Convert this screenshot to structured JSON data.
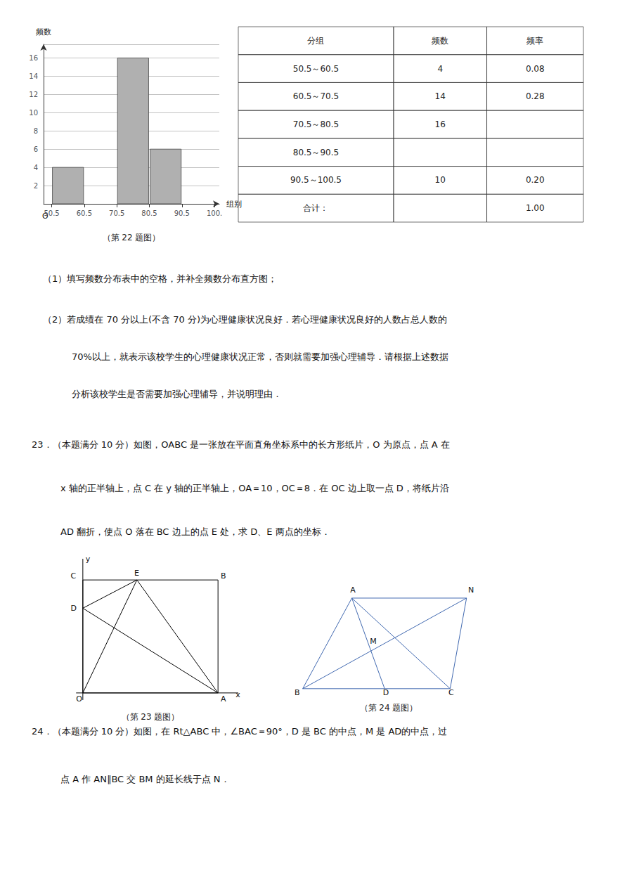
{
  "chart_data": [
    {
      "type": "histogram",
      "title": "（第 22 题图）",
      "bins": [
        50.5,
        60.5,
        70.5,
        80.5,
        90.5,
        100.5
      ],
      "values": [
        4,
        0,
        16,
        6,
        0
      ],
      "color": "#b0b0b0",
      "xlabel": "组别",
      "ylabel": "频数",
      "xlim": [
        48,
        102
      ],
      "ylim": [
        0,
        17.5
      ],
      "xticks": [
        50.5,
        60.5,
        70.5,
        80.5,
        90.5,
        {
          "value": 100.5,
          "label": "100."
        }
      ],
      "yticks": [
        2,
        4,
        6,
        8,
        10,
        12,
        14,
        16
      ],
      "grid": true,
      "annotations": [
        {
          "text": "O",
          "x": 48.5,
          "y": -1.8
        }
      ]
    },
    {
      "type": "table",
      "columns": [
        "分组",
        "频数",
        "频率"
      ],
      "rows": [
        [
          "50.5～60.5",
          "4",
          "0.08"
        ],
        [
          "60.5～70.5",
          "14",
          "0.28"
        ],
        [
          "70.5～80.5",
          "16",
          null
        ],
        [
          "80.5～90.5",
          null,
          null
        ],
        [
          "90.5～100.5",
          "10",
          "0.20"
        ],
        [
          "合计：",
          null,
          "1.00"
        ]
      ]
    },
    {
      "type": "text",
      "annotations": [
        "（1）填写频数分布表中的空格，并补全频数分布直方图；",
        "（2）若成绩在 70 分以上(不含 70 分)为心理健康状况良好．若心理健康状况良好的人数占总人数的",
        "70%以上，就表示该校学生的心理健康状况正常，否则就需要加强心理辅导．请根据上述数据",
        "分析该校学生是否需要加强心理辅导，并说明理由．",
        "23．（本题满分 10 分）如图，OABC 是一张放在平面直角坐标系中的长方形纸片，O 为原点，点 A 在",
        "x 轴的正半轴上，点 C 在 y 轴的正半轴上，OA＝10，OC＝8．在 OC 边上取一点 D，将纸片沿",
        "AD 翻折，使点 O 落在 BC 边上的点 E 处，求 D、E 两点的坐标．",
        "24．（本题满分 10 分）如图，在 Rt△ABC 中，∠BAC＝90°，D 是 BC 的中点，M 是 AD的中点，过",
        "点 A 作 AN∥BC 交 BM 的延长线于点 N．"
      ]
    },
    {
      "type": "line",
      "title": "（第 23 题图）",
      "color": "#000000",
      "xlim": [
        -1.5,
        11.5
      ],
      "ylim": [
        -1.2,
        9.5
      ],
      "tick_labels": false,
      "series": [
        {
          "x": [
            0,
            10,
            10,
            0,
            0
          ],
          "values": [
            0,
            0,
            8,
            8,
            0
          ]
        },
        {
          "x": [
            -0.5,
            11.5
          ],
          "values": [
            0,
            0
          ],
          "marker": "arrow"
        },
        {
          "x": [
            0,
            0
          ],
          "values": [
            -0.5,
            9.5
          ],
          "marker": "arrow"
        },
        {
          "x": [
            10,
            0
          ],
          "values": [
            0,
            6
          ]
        },
        {
          "x": [
            10,
            4
          ],
          "values": [
            0,
            8
          ]
        },
        {
          "x": [
            0,
            4
          ],
          "values": [
            0,
            8
          ]
        },
        {
          "x": [
            0,
            4
          ],
          "values": [
            6,
            8
          ]
        }
      ],
      "annotations": [
        {
          "text": "O",
          "x": -0.5,
          "y": -0.7
        },
        {
          "text": "A",
          "x": 10.2,
          "y": -0.7
        },
        {
          "text": "x",
          "x": 11.3,
          "y": -0.4
        },
        {
          "text": "y",
          "x": 0.2,
          "y": 9.2
        },
        {
          "text": "C",
          "x": -0.9,
          "y": 8.0
        },
        {
          "text": "B",
          "x": 10.2,
          "y": 8.0
        },
        {
          "text": "D",
          "x": -0.9,
          "y": 5.7
        },
        {
          "text": "E",
          "x": 3.8,
          "y": 8.2
        }
      ]
    },
    {
      "type": "line",
      "title": "（第 24 题图）",
      "color": "#4169b0",
      "xlim": [
        -0.5,
        11
      ],
      "ylim": [
        -0.8,
        8
      ],
      "tick_labels": false,
      "series": [
        {
          "x": [
            0,
            3,
            10,
            9,
            0
          ],
          "values": [
            0,
            6,
            6,
            0,
            0
          ]
        },
        {
          "x": [
            0,
            10
          ],
          "values": [
            0,
            6
          ]
        },
        {
          "x": [
            3,
            5
          ],
          "values": [
            6,
            0
          ]
        },
        {
          "x": [
            3,
            9
          ],
          "values": [
            6,
            0
          ]
        }
      ],
      "annotations": [
        {
          "text": "A",
          "x": 2.9,
          "y": 6.3
        },
        {
          "text": "N",
          "x": 10.1,
          "y": 6.3
        },
        {
          "text": "B",
          "x": -0.5,
          "y": -0.5
        },
        {
          "text": "D",
          "x": 4.9,
          "y": -0.5
        },
        {
          "text": "C",
          "x": 8.9,
          "y": -0.5
        },
        {
          "text": "M",
          "x": 4.1,
          "y": 2.9
        }
      ]
    }
  ]
}
